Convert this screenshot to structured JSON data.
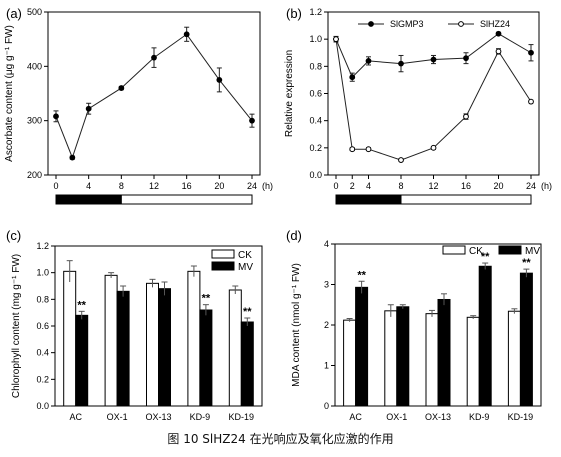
{
  "figure_caption": "图 10 SlHZ24 在光响应及氧化应激的作用",
  "panels": {
    "a": {
      "label": "(a)"
    },
    "b": {
      "label": "(b)"
    },
    "c": {
      "label": "(c)"
    },
    "d": {
      "label": "(d)"
    }
  },
  "colors": {
    "line": "#222222",
    "filled_bar": "#000000",
    "open_bar": "#ffffff"
  },
  "chart_data": [
    {
      "id": "a",
      "type": "line",
      "ylabel": "Ascorbate content (μg g⁻¹ FW)",
      "x_unit": "(h)",
      "x": [
        0,
        2,
        4,
        8,
        12,
        16,
        20,
        24
      ],
      "x_ticks": [
        0,
        4,
        8,
        12,
        16,
        20,
        24
      ],
      "ylim": [
        200,
        500
      ],
      "y_ticks": [
        200,
        300,
        400,
        500
      ],
      "series": [
        {
          "values": [
            308,
            232,
            322,
            360,
            416,
            459,
            375,
            300
          ],
          "errors": [
            10,
            3,
            10,
            3,
            18,
            13,
            22,
            12
          ],
          "marker": "filled"
        }
      ],
      "light_bar": {
        "dark": [
          0,
          8
        ],
        "light": [
          8,
          24
        ]
      }
    },
    {
      "id": "b",
      "type": "line",
      "ylabel": "Relative expression",
      "x_unit": "(h)",
      "x": [
        0,
        2,
        4,
        8,
        12,
        16,
        20,
        24
      ],
      "x_ticks": [
        0,
        2,
        4,
        8,
        12,
        16,
        20,
        24
      ],
      "ylim": [
        0.0,
        1.2
      ],
      "y_ticks": [
        0.0,
        0.2,
        0.4,
        0.6,
        0.8,
        1.0,
        1.2
      ],
      "legend_position": "top",
      "series": [
        {
          "name": "SlGMP3",
          "values": [
            1.0,
            0.72,
            0.84,
            0.82,
            0.85,
            0.86,
            1.04,
            0.9
          ],
          "errors": [
            0.02,
            0.03,
            0.03,
            0.06,
            0.03,
            0.04,
            0.01,
            0.06
          ],
          "marker": "filled"
        },
        {
          "name": "SlHZ24",
          "values": [
            1.0,
            0.19,
            0.19,
            0.11,
            0.2,
            0.43,
            0.91,
            0.54
          ],
          "errors": [
            0.02,
            0.01,
            0.01,
            0.01,
            0.01,
            0.02,
            0.02,
            0.01
          ],
          "marker": "open"
        }
      ],
      "light_bar": {
        "dark": [
          0,
          8
        ],
        "light": [
          8,
          24
        ]
      }
    },
    {
      "id": "c",
      "type": "bar",
      "ylabel": "Chlorophyll content (mg g⁻¹ FW)",
      "categories": [
        "AC",
        "OX-1",
        "OX-13",
        "KD-9",
        "KD-19"
      ],
      "ylim": [
        0.0,
        1.2
      ],
      "y_ticks": [
        0.0,
        0.2,
        0.4,
        0.6,
        0.8,
        1.0,
        1.2
      ],
      "legend_position": "top-right",
      "series": [
        {
          "name": "CK",
          "values": [
            1.01,
            0.98,
            0.92,
            1.01,
            0.87
          ],
          "errors": [
            0.08,
            0.02,
            0.03,
            0.04,
            0.03
          ],
          "fill": "open"
        },
        {
          "name": "MV",
          "values": [
            0.68,
            0.86,
            0.88,
            0.72,
            0.63
          ],
          "errors": [
            0.03,
            0.04,
            0.05,
            0.04,
            0.03
          ],
          "fill": "filled"
        }
      ],
      "significance": [
        {
          "category": "AC",
          "series": "MV",
          "text": "**"
        },
        {
          "category": "KD-9",
          "series": "MV",
          "text": "**"
        },
        {
          "category": "KD-19",
          "series": "MV",
          "text": "**"
        }
      ]
    },
    {
      "id": "d",
      "type": "bar",
      "ylabel": "MDA content (nmol g⁻¹ FW)",
      "categories": [
        "AC",
        "OX-1",
        "OX-13",
        "KD-9",
        "KD-19"
      ],
      "ylim": [
        0,
        4
      ],
      "y_ticks": [
        0,
        1,
        2,
        3,
        4
      ],
      "legend_position": "top",
      "series": [
        {
          "name": "CK",
          "values": [
            2.12,
            2.35,
            2.28,
            2.19,
            2.34
          ],
          "errors": [
            0.04,
            0.15,
            0.08,
            0.04,
            0.06
          ],
          "fill": "open"
        },
        {
          "name": "MV",
          "values": [
            2.93,
            2.45,
            2.63,
            3.45,
            3.28
          ],
          "errors": [
            0.15,
            0.05,
            0.14,
            0.08,
            0.1
          ],
          "fill": "filled"
        }
      ],
      "significance": [
        {
          "category": "AC",
          "series": "MV",
          "text": "**"
        },
        {
          "category": "KD-9",
          "series": "MV",
          "text": "**"
        },
        {
          "category": "KD-19",
          "series": "MV",
          "text": "**"
        }
      ]
    }
  ]
}
